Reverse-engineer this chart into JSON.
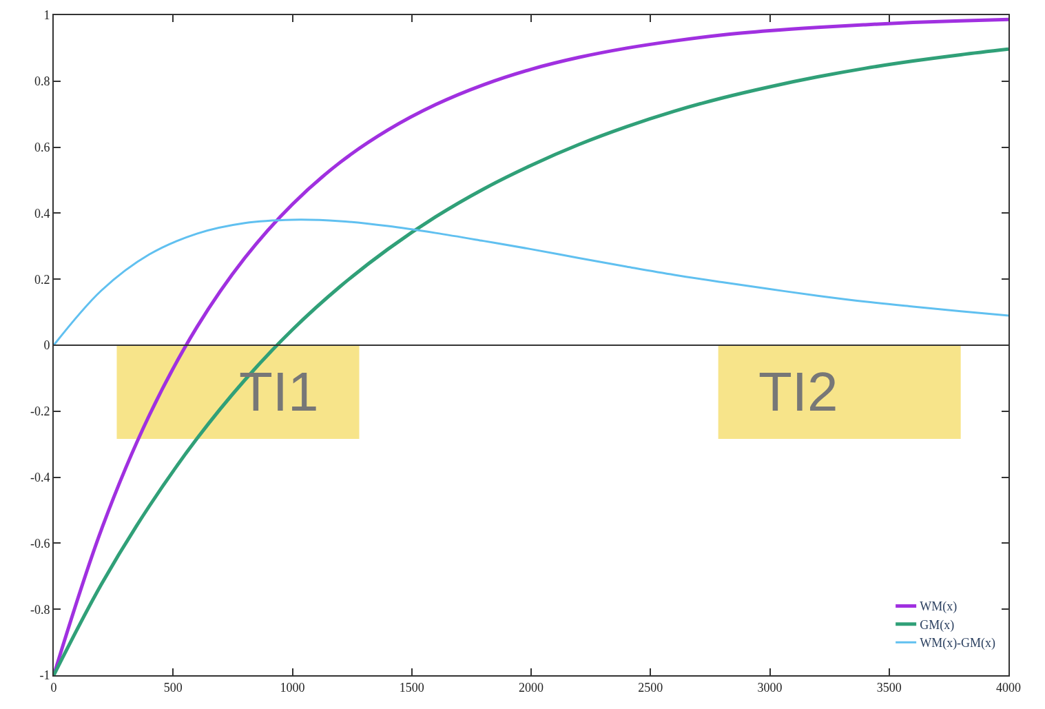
{
  "chart_data": {
    "type": "line",
    "x": [
      0,
      200,
      400,
      600,
      800,
      1000,
      1200,
      1400,
      1600,
      1800,
      2000,
      2200,
      2400,
      2600,
      2800,
      3000,
      3200,
      3400,
      3600,
      3800,
      4000
    ],
    "series": [
      {
        "name": "WM(x)",
        "color": "#a030e0",
        "values": [
          -1,
          -0.558,
          -0.213,
          0.055,
          0.264,
          0.427,
          0.554,
          0.652,
          0.729,
          0.789,
          0.836,
          0.872,
          0.9,
          0.922,
          0.94,
          0.953,
          0.963,
          0.971,
          0.978,
          0.983,
          0.987
        ]
      },
      {
        "name": "GM(x)",
        "color": "#30a078",
        "values": [
          -1,
          -0.724,
          -0.488,
          -0.283,
          -0.106,
          0.047,
          0.178,
          0.291,
          0.389,
          0.473,
          0.545,
          0.608,
          0.662,
          0.709,
          0.749,
          0.783,
          0.813,
          0.839,
          0.861,
          0.88,
          0.897
        ]
      },
      {
        "name": "WM(x)-GM(x)",
        "color": "#60c0f0",
        "values": [
          0,
          0.166,
          0.275,
          0.338,
          0.37,
          0.38,
          0.376,
          0.361,
          0.34,
          0.316,
          0.291,
          0.264,
          0.238,
          0.213,
          0.191,
          0.17,
          0.15,
          0.132,
          0.117,
          0.103,
          0.09
        ]
      }
    ],
    "annotations": [
      "TI1",
      "TI2"
    ],
    "ref_lines": [
      {
        "axis": "y",
        "value": 0,
        "color": "#333333"
      }
    ],
    "xlim": [
      0,
      4000
    ],
    "ylim": [
      -1,
      1
    ],
    "xticks": [
      0,
      500,
      1000,
      1500,
      2000,
      2500,
      3000,
      3500,
      4000
    ],
    "yticks": [
      -1,
      -0.8,
      -0.6,
      -0.4,
      -0.2,
      0,
      0.2,
      0.4,
      0.6,
      0.8,
      1
    ],
    "grid": false,
    "legend": "bottom right",
    "line_style": "solid",
    "marker": "none"
  }
}
